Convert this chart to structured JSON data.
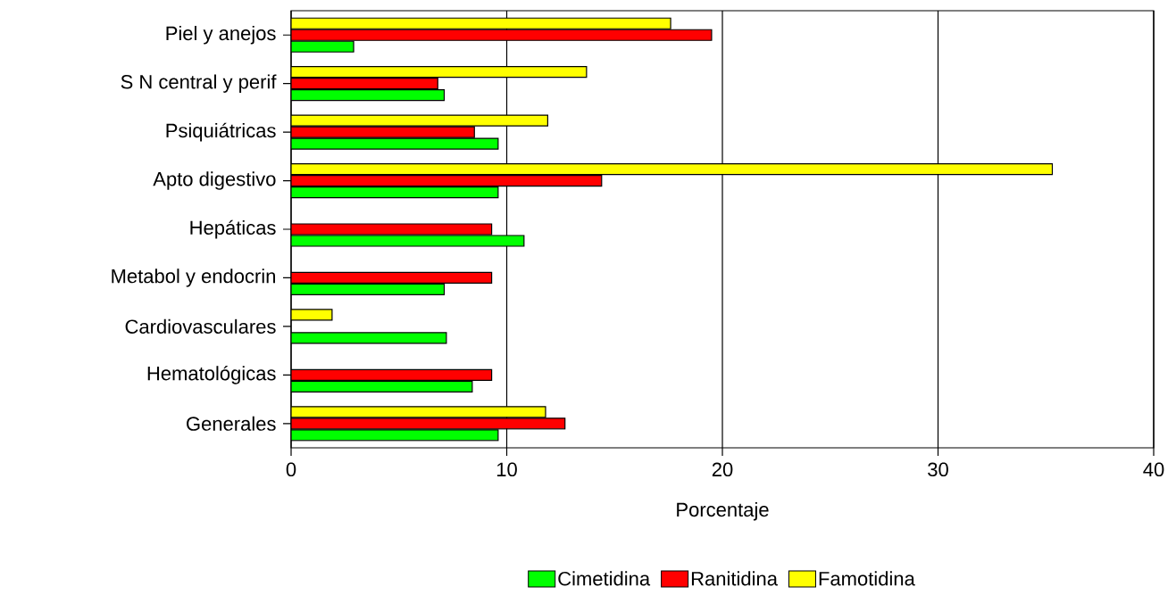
{
  "chart_data": {
    "type": "bar",
    "orientation": "horizontal",
    "xlabel": "Porcentaje",
    "categories": [
      "Piel y anejos",
      "S N central y perif",
      "Psiquiátricas",
      "Apto digestivo",
      "Hepáticas",
      "Metabol y endocrin",
      "Cardiovasculares",
      "Hematológicas",
      "Generales"
    ],
    "series": [
      {
        "name": "Cimetidina",
        "color": "#00ff00",
        "values": [
          2.9,
          7.1,
          9.6,
          9.6,
          10.8,
          7.1,
          7.2,
          8.4,
          9.6
        ]
      },
      {
        "name": "Ranitidina",
        "color": "#ff0000",
        "values": [
          19.5,
          6.8,
          8.5,
          14.4,
          9.3,
          9.3,
          null,
          9.3,
          12.7
        ]
      },
      {
        "name": "Famotidina",
        "color": "#ffff00",
        "values": [
          17.6,
          13.7,
          11.9,
          35.3,
          null,
          null,
          1.9,
          null,
          11.8
        ]
      }
    ],
    "xlim": [
      0,
      40
    ],
    "xticks": [
      0,
      10,
      20,
      30,
      40
    ],
    "grid": "x",
    "legend": "bottom"
  }
}
